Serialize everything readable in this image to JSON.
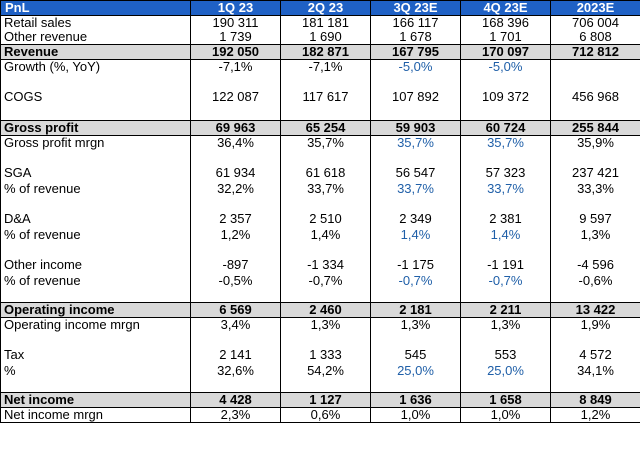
{
  "header": {
    "label": "PnL",
    "columns": [
      "1Q 23",
      "2Q 23",
      "3Q 23E",
      "4Q 23E",
      "2023E"
    ]
  },
  "rows": [
    {
      "label": "Retail sales",
      "values": [
        "190 311",
        "181 181",
        "166 117",
        "168 396",
        "706 004"
      ]
    },
    {
      "label": "Other revenue",
      "values": [
        "1 739",
        "1 690",
        "1 678",
        "1 701",
        "6 808"
      ]
    },
    {
      "label": "Revenue",
      "values": [
        "192 050",
        "182 871",
        "167 795",
        "170 097",
        "712 812"
      ]
    },
    {
      "label": "Growth (%, YoY)",
      "values": [
        "-7,1%",
        "-7,1%",
        "-5,0%",
        "-5,0%",
        ""
      ]
    },
    {
      "label": "COGS",
      "values": [
        "122 087",
        "117 617",
        "107 892",
        "109 372",
        "456 968"
      ]
    },
    {
      "label": "Gross profit",
      "values": [
        "69 963",
        "65 254",
        "59 903",
        "60 724",
        "255 844"
      ]
    },
    {
      "label": "Gross profit mrgn",
      "values": [
        "36,4%",
        "35,7%",
        "35,7%",
        "35,7%",
        "35,9%"
      ]
    },
    {
      "label": "SGA",
      "values": [
        "61 934",
        "61 618",
        "56 547",
        "57 323",
        "237 421"
      ]
    },
    {
      "label": "% of revenue",
      "values": [
        "32,2%",
        "33,7%",
        "33,7%",
        "33,7%",
        "33,3%"
      ]
    },
    {
      "label": "D&A",
      "values": [
        "2 357",
        "2 510",
        "2 349",
        "2 381",
        "9 597"
      ]
    },
    {
      "label": "% of revenue",
      "values": [
        "1,2%",
        "1,4%",
        "1,4%",
        "1,4%",
        "1,3%"
      ]
    },
    {
      "label": "Other income",
      "values": [
        "-897",
        "-1 334",
        "-1 175",
        "-1 191",
        "-4 596"
      ]
    },
    {
      "label": "% of revenue",
      "values": [
        "-0,5%",
        "-0,7%",
        "-0,7%",
        "-0,7%",
        "-0,6%"
      ]
    },
    {
      "label": "Operating income",
      "values": [
        "6 569",
        "2 460",
        "2 181",
        "2 211",
        "13 422"
      ]
    },
    {
      "label": "Operating income mrgn",
      "values": [
        "3,4%",
        "1,3%",
        "1,3%",
        "1,3%",
        "1,9%"
      ]
    },
    {
      "label": "Tax",
      "values": [
        "2 141",
        "1 333",
        "545",
        "553",
        "4 572"
      ]
    },
    {
      "label": "%",
      "values": [
        "32,6%",
        "54,2%",
        "25,0%",
        "25,0%",
        "34,1%"
      ]
    },
    {
      "label": "Net income",
      "values": [
        "4 428",
        "1 127",
        "1 636",
        "1 658",
        "8 849"
      ]
    },
    {
      "label": "Net income mrgn",
      "values": [
        "2,3%",
        "0,6%",
        "1,0%",
        "1,0%",
        "1,2%"
      ]
    }
  ],
  "colors": {
    "header_bg": "#1f61c5",
    "header_text": "#ffffff",
    "subtotal_bg": "#d9d9d9",
    "estimate_text": "#1f5fa8"
  }
}
